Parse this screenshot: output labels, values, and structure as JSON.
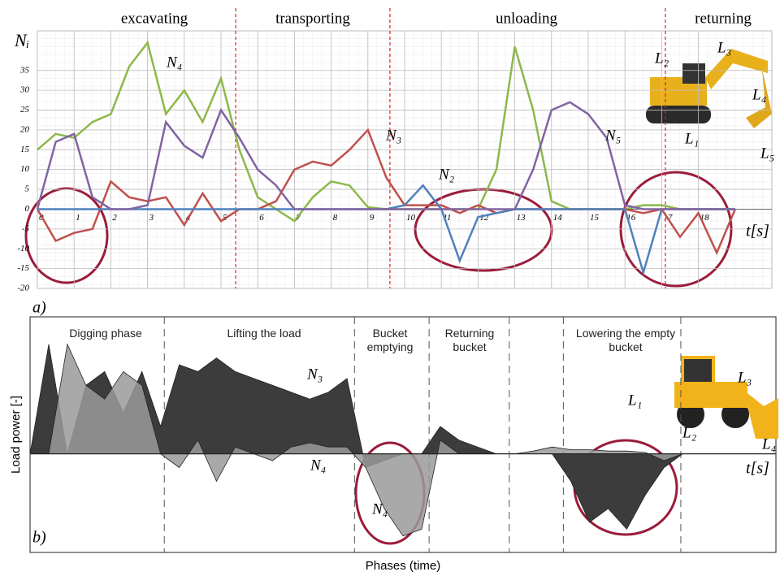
{
  "chart_data": [
    {
      "type": "line",
      "phases": [
        "excavating",
        "transporting",
        "unloading",
        "returning"
      ],
      "phase_bounds": [
        5.4,
        9.6,
        17.1
      ],
      "y_label": "Nᵢ",
      "x_label": "t[s]",
      "panel": "a)",
      "annotations": [
        "L₂",
        "L₃",
        "L₄",
        "L₁",
        "L₅"
      ],
      "x": [
        0,
        0.5,
        1,
        1.5,
        2,
        2.5,
        3,
        3.5,
        4,
        4.5,
        5,
        5.5,
        6,
        6.5,
        7,
        7.5,
        8,
        8.5,
        9,
        9.5,
        10,
        10.5,
        11,
        11.5,
        12,
        12.5,
        13,
        13.5,
        14,
        14.5,
        15,
        15.5,
        16,
        16.5,
        17,
        17.5,
        18,
        18.5,
        19
      ],
      "xlim": [
        0,
        20
      ],
      "ylim": [
        -20,
        45
      ],
      "xticks": [
        0,
        1,
        2,
        3,
        4,
        5,
        6,
        7,
        8,
        9,
        10,
        11,
        12,
        13,
        14,
        15,
        16,
        17,
        18
      ],
      "yticks": [
        -20,
        -15,
        -10,
        -5,
        0,
        5,
        10,
        15,
        20,
        25,
        30,
        35
      ],
      "grid": true,
      "series": [
        {
          "name": "N₄",
          "color": "#8db84a",
          "values": [
            15,
            19,
            18,
            22,
            24,
            36,
            42,
            24,
            30,
            22,
            33,
            15,
            3,
            0,
            -3,
            3,
            7,
            6,
            0.5,
            0,
            0,
            0,
            0,
            0,
            0,
            10,
            41,
            25,
            2,
            0,
            0,
            0,
            0,
            1,
            1,
            0,
            0,
            0,
            0
          ]
        },
        {
          "name": "N₃",
          "color": "#c0504d",
          "values": [
            0,
            -8,
            -6,
            -5,
            7,
            3,
            2,
            3,
            -4,
            4,
            -3,
            0,
            0,
            2,
            10,
            12,
            11,
            15,
            20,
            8,
            1,
            1,
            1,
            -1,
            1,
            -1,
            0,
            0,
            0,
            0,
            0,
            0,
            0,
            -1,
            0,
            -7,
            -1,
            -11,
            0
          ]
        },
        {
          "name": "N₂",
          "color": "#4f81bd",
          "values": [
            0,
            0,
            0,
            0,
            0,
            0,
            0,
            0,
            0,
            0,
            0,
            0,
            0,
            0,
            0,
            0,
            0,
            0,
            0,
            0,
            1,
            6,
            0,
            -13,
            -2,
            -1,
            0,
            0,
            0,
            0,
            0,
            0,
            0,
            -16,
            0,
            0,
            0,
            0,
            0
          ]
        },
        {
          "name": "N₅",
          "color": "#8064a2",
          "values": [
            0,
            17,
            19,
            3,
            0,
            0,
            1,
            22,
            16,
            13,
            25,
            18,
            10,
            6,
            0,
            0,
            0,
            0,
            0,
            0,
            0,
            0,
            0,
            0,
            0,
            0,
            0,
            10,
            25,
            27,
            24,
            18,
            1,
            0,
            0,
            0,
            0,
            0,
            0
          ]
        }
      ]
    },
    {
      "type": "area",
      "phases": [
        "Digging phase",
        "Lifting the load",
        "Bucket emptying",
        "Returning bucket",
        "Lowering the empty bucket"
      ],
      "phase_bounds": [
        7.2,
        17.4,
        21.4,
        25.7,
        28.6,
        34.9
      ],
      "y_label": "Load power [-]",
      "x_label": "Phases (time)",
      "axis_end_label": "t[s]",
      "panel": "b)",
      "annotations": [
        "L₁",
        "L₃",
        "L₂",
        "L₄"
      ],
      "x": [
        0,
        1,
        2,
        3,
        4,
        5,
        6,
        7,
        8,
        9,
        10,
        11,
        12,
        13,
        14,
        15,
        16,
        17,
        18,
        19,
        20,
        21,
        22,
        23,
        24,
        25,
        26,
        27,
        28,
        29,
        30,
        31,
        32,
        33,
        34,
        35,
        36,
        37,
        38,
        39,
        40
      ],
      "xlim": [
        0,
        40
      ],
      "ylim": [
        -0.72,
        1
      ],
      "series": [
        {
          "name": "N₃",
          "color": "#3c3c3c",
          "values": [
            0,
            0.8,
            0,
            0.5,
            0.6,
            0.3,
            0.6,
            0.2,
            0.65,
            0.6,
            0.7,
            0.6,
            0.55,
            0.5,
            0.45,
            0.4,
            0.45,
            0.55,
            -0.1,
            -0.05,
            0,
            0,
            0.2,
            0.1,
            0.05,
            0,
            0,
            0,
            0,
            -0.2,
            -0.5,
            -0.4,
            -0.55,
            -0.3,
            -0.1,
            0,
            0,
            0,
            0,
            0,
            0
          ]
        },
        {
          "name": "N₄",
          "color": "#9a9a9a",
          "values": [
            0,
            0,
            0.8,
            0.5,
            0.4,
            0.6,
            0.5,
            0,
            -0.1,
            0.1,
            -0.2,
            0.05,
            0,
            -0.05,
            0.05,
            0.08,
            0.05,
            0.05,
            -0.1,
            -0.4,
            -0.6,
            -0.55,
            0.1,
            0,
            0,
            0,
            0,
            0.02,
            0.05,
            0.03,
            0.03,
            0.02,
            0.02,
            0.01,
            -0.05,
            0,
            0,
            0,
            0,
            0,
            0
          ]
        }
      ]
    }
  ]
}
